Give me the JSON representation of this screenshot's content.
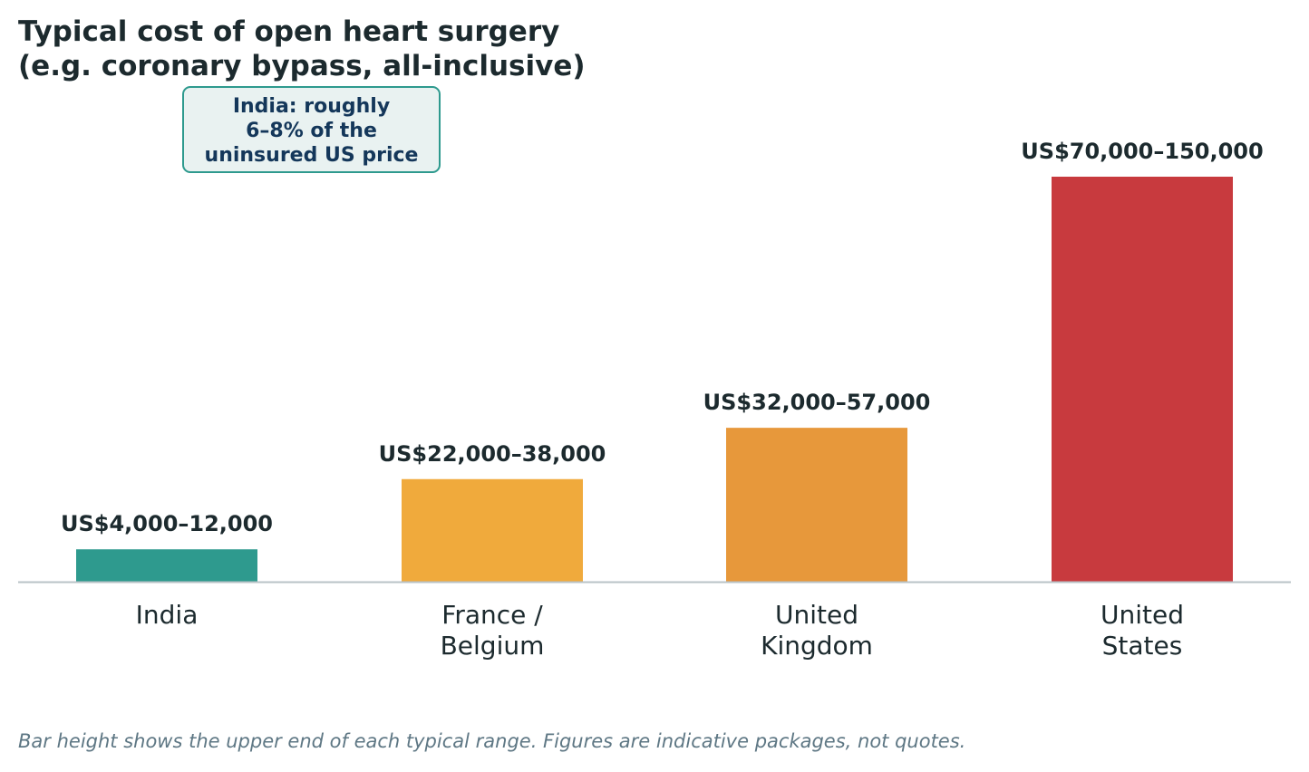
{
  "title_lines": [
    "Typical cost of open heart surgery",
    "(e.g. coronary bypass, all-inclusive)"
  ],
  "callout_lines": [
    "India: roughly",
    "6–8% of the",
    "uninsured US price"
  ],
  "footnote": "Bar height shows the upper end of each typical range. Figures are indicative packages, not quotes.",
  "chart_data": {
    "type": "bar",
    "title": "Typical cost of open heart surgery (e.g. coronary bypass, all-inclusive)",
    "categories": [
      {
        "lines": [
          "India"
        ]
      },
      {
        "lines": [
          "France /",
          "Belgium"
        ]
      },
      {
        "lines": [
          "United",
          "Kingdom"
        ]
      },
      {
        "lines": [
          "United",
          "States"
        ]
      }
    ],
    "values": [
      12000,
      38000,
      57000,
      150000
    ],
    "ranges": [
      [
        4000,
        12000
      ],
      [
        22000,
        38000
      ],
      [
        32000,
        57000
      ],
      [
        70000,
        150000
      ]
    ],
    "data_labels": [
      "US$4,000–12,000",
      "US$22,000–38,000",
      "US$32,000–57,000",
      "US$70,000–150,000"
    ],
    "colors": [
      "#2e9a8e",
      "#f0aa3c",
      "#e7983b",
      "#c83a3e"
    ],
    "ylim": [
      0,
      150000
    ],
    "xlabel": "",
    "ylabel": "",
    "grid": false,
    "legend": "none"
  }
}
